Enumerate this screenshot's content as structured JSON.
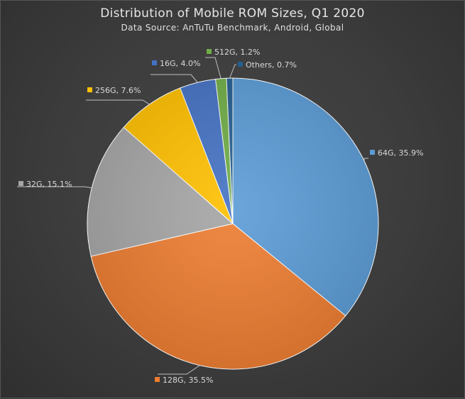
{
  "chart_data": {
    "type": "pie",
    "title": "Distribution of Mobile ROM Sizes, Q1 2020",
    "subtitle": "Data Source: AnTuTu Benchmark, Android, Global",
    "slices": [
      {
        "name": "64G",
        "value": 35.9,
        "label": "64G, 35.9%",
        "color": "#5b9bd5"
      },
      {
        "name": "128G",
        "value": 35.5,
        "label": "128G, 35.5%",
        "color": "#ed7d31"
      },
      {
        "name": "32G",
        "value": 15.1,
        "label": "32G, 15.1%",
        "color": "#a5a5a5"
      },
      {
        "name": "256G",
        "value": 7.6,
        "label": "256G, 7.6%",
        "color": "#ffc000"
      },
      {
        "name": "16G",
        "value": 4.0,
        "label": "16G, 4.0%",
        "color": "#4472c4"
      },
      {
        "name": "512G",
        "value": 1.2,
        "label": "512G, 1.2%",
        "color": "#70ad47"
      },
      {
        "name": "Others",
        "value": 0.7,
        "label": "Others, 0.7%",
        "color": "#255e91"
      }
    ],
    "start_angle_deg": 0,
    "direction": "clockwise",
    "legend": "none"
  }
}
